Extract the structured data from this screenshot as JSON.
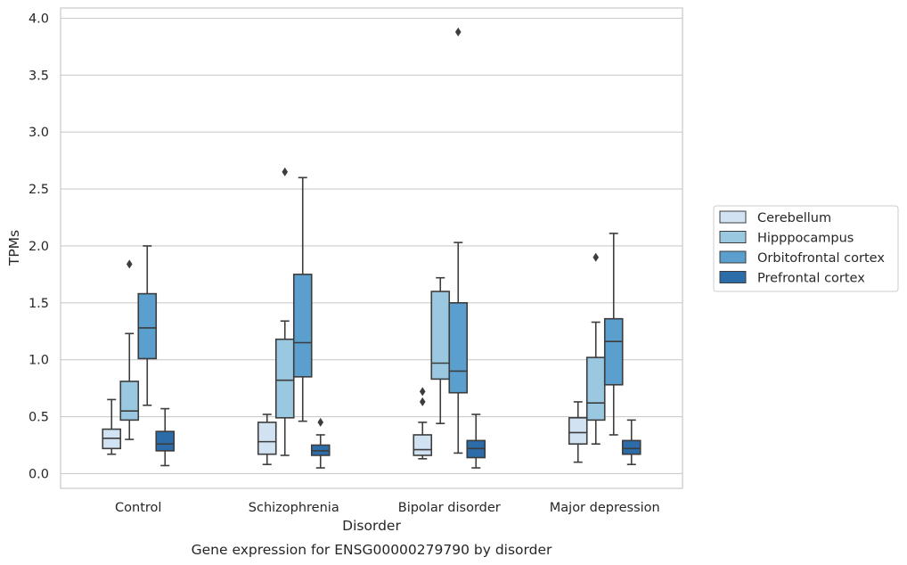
{
  "caption": "Gene expression for ENSG00000279790 by disorder",
  "chart_data": {
    "type": "box",
    "xlabel": "Disorder",
    "ylabel": "TPMs",
    "ylim": [
      -0.13,
      4.09
    ],
    "yticks": [
      "0.0",
      "0.5",
      "1.0",
      "1.5",
      "2.0",
      "2.5",
      "3.0",
      "3.5",
      "4.0"
    ],
    "ytick_values": [
      0,
      0.5,
      1.0,
      1.5,
      2.0,
      2.5,
      3.0,
      3.5,
      4.0
    ],
    "grid": "horizontal",
    "legend_position": "right",
    "categories": [
      "Control",
      "Schizophrenia",
      "Bipolar disorder",
      "Major depression"
    ],
    "series": [
      {
        "name": "Cerebellum",
        "color": "#d1e2f2",
        "boxes": [
          {
            "q1": 0.22,
            "median": 0.31,
            "q3": 0.39,
            "whisker_low": 0.17,
            "whisker_high": 0.65,
            "outliers": []
          },
          {
            "q1": 0.17,
            "median": 0.28,
            "q3": 0.45,
            "whisker_low": 0.08,
            "whisker_high": 0.52,
            "outliers": []
          },
          {
            "q1": 0.16,
            "median": 0.21,
            "q3": 0.34,
            "whisker_low": 0.13,
            "whisker_high": 0.45,
            "outliers": [
              0.72,
              0.63
            ]
          },
          {
            "q1": 0.26,
            "median": 0.36,
            "q3": 0.49,
            "whisker_low": 0.1,
            "whisker_high": 0.63,
            "outliers": []
          }
        ]
      },
      {
        "name": "Hipppocampus",
        "color": "#9ac8e0",
        "boxes": [
          {
            "q1": 0.47,
            "median": 0.55,
            "q3": 0.81,
            "whisker_low": 0.3,
            "whisker_high": 1.23,
            "outliers": [
              1.84
            ]
          },
          {
            "q1": 0.49,
            "median": 0.82,
            "q3": 1.18,
            "whisker_low": 0.16,
            "whisker_high": 1.34,
            "outliers": [
              2.65
            ]
          },
          {
            "q1": 0.83,
            "median": 0.97,
            "q3": 1.6,
            "whisker_low": 0.44,
            "whisker_high": 1.72,
            "outliers": []
          },
          {
            "q1": 0.47,
            "median": 0.62,
            "q3": 1.02,
            "whisker_low": 0.26,
            "whisker_high": 1.33,
            "outliers": [
              1.9
            ]
          }
        ]
      },
      {
        "name": "Orbitofrontal cortex",
        "color": "#5a9fcd",
        "boxes": [
          {
            "q1": 1.01,
            "median": 1.28,
            "q3": 1.58,
            "whisker_low": 0.6,
            "whisker_high": 2.0,
            "outliers": []
          },
          {
            "q1": 0.85,
            "median": 1.15,
            "q3": 1.75,
            "whisker_low": 0.46,
            "whisker_high": 2.6,
            "outliers": []
          },
          {
            "q1": 0.71,
            "median": 0.9,
            "q3": 1.5,
            "whisker_low": 0.18,
            "whisker_high": 2.03,
            "outliers": [
              3.88
            ]
          },
          {
            "q1": 0.78,
            "median": 1.16,
            "q3": 1.36,
            "whisker_low": 0.34,
            "whisker_high": 2.11,
            "outliers": []
          }
        ]
      },
      {
        "name": "Prefrontal cortex",
        "color": "#2b6ca9",
        "boxes": [
          {
            "q1": 0.2,
            "median": 0.26,
            "q3": 0.37,
            "whisker_low": 0.07,
            "whisker_high": 0.57,
            "outliers": []
          },
          {
            "q1": 0.16,
            "median": 0.2,
            "q3": 0.25,
            "whisker_low": 0.05,
            "whisker_high": 0.34,
            "outliers": [
              0.45
            ]
          },
          {
            "q1": 0.14,
            "median": 0.22,
            "q3": 0.29,
            "whisker_low": 0.05,
            "whisker_high": 0.52,
            "outliers": []
          },
          {
            "q1": 0.17,
            "median": 0.22,
            "q3": 0.29,
            "whisker_low": 0.08,
            "whisker_high": 0.47,
            "outliers": []
          }
        ]
      }
    ]
  }
}
